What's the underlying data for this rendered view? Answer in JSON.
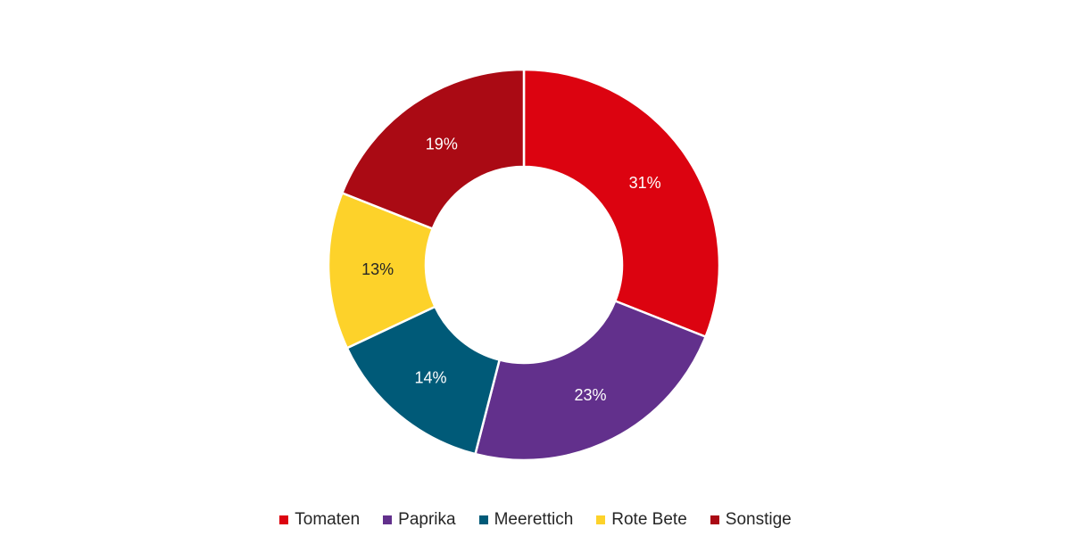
{
  "chart_data": {
    "type": "pie",
    "variant": "donut",
    "title": "",
    "categories": [
      "Tomaten",
      "Paprika",
      "Meerettich",
      "Rote Bete",
      "Sonstige"
    ],
    "values": [
      31,
      23,
      14,
      13,
      19
    ],
    "labels": [
      "31%",
      "23%",
      "14%",
      "13%",
      "19%"
    ],
    "colors": [
      "#dc0310",
      "#62308c",
      "#005a78",
      "#fdd22a",
      "#aa0a14"
    ],
    "label_colors": [
      "#ffffff",
      "#ffffff",
      "#ffffff",
      "#262626",
      "#ffffff"
    ],
    "legend_position": "bottom"
  }
}
